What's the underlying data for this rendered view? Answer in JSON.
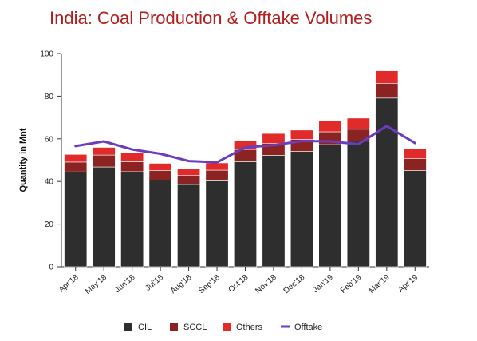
{
  "chart_data": {
    "type": "bar",
    "title": "India: Coal Production & Offtake Volumes",
    "ylabel": "Quantity in Mnt",
    "xlabel": "",
    "ylim": [
      0,
      100
    ],
    "yticks": [
      0,
      20,
      40,
      60,
      80,
      100
    ],
    "grid": false,
    "legend_position": "bottom",
    "categories": [
      "Apr'18",
      "May'18",
      "Jun'18",
      "Jul'18",
      "Aug'18",
      "Sep'18",
      "Oct'18",
      "Nov'18",
      "Dec'18",
      "Jan'19",
      "Feb'19",
      "Mar'19",
      "Apr'19"
    ],
    "series": [
      {
        "name": "CIL",
        "kind": "stacked-bar",
        "color": "#2e2e2e",
        "values": [
          44.5,
          46.8,
          44.6,
          40.6,
          38.6,
          40.3,
          49.3,
          52.3,
          54.1,
          57.3,
          58.9,
          79.1,
          45.1
        ]
      },
      {
        "name": "SCCL",
        "kind": "stacked-bar",
        "color": "#8b2323",
        "values": [
          4.6,
          5.6,
          4.7,
          4.5,
          4.2,
          5.0,
          5.7,
          5.5,
          5.7,
          6.0,
          5.6,
          6.8,
          5.6
        ]
      },
      {
        "name": "Others",
        "kind": "stacked-bar",
        "color": "#e12a2a",
        "values": [
          3.6,
          3.6,
          4.2,
          3.4,
          3.0,
          3.4,
          4.0,
          4.7,
          4.3,
          5.3,
          5.2,
          6.0,
          4.8
        ]
      },
      {
        "name": "Offtake",
        "kind": "line",
        "color": "#6a3dbf",
        "values": [
          56.6,
          58.8,
          55.0,
          53.0,
          49.6,
          49.0,
          56.0,
          57.0,
          59.0,
          58.8,
          57.5,
          66.0,
          58.0
        ]
      }
    ]
  }
}
